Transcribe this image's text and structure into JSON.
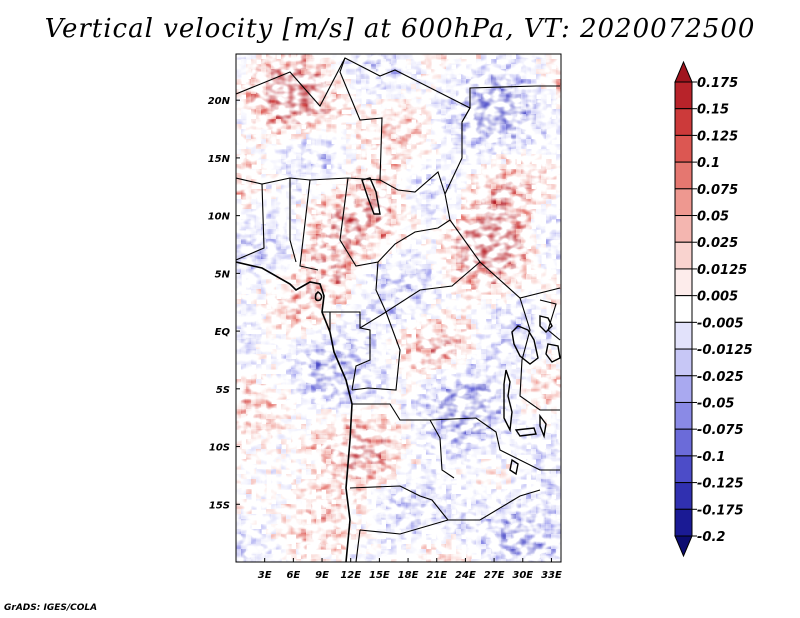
{
  "title": "Vertical velocity [m/s] at 600hPa, VT: 2020072500",
  "credit": "GrADS: IGES/COLA",
  "chart_data": {
    "type": "heatmap",
    "variable": "Vertical velocity",
    "units": "m/s",
    "level": "600hPa",
    "valid_time": "2020072500",
    "lon_range": [
      0,
      34
    ],
    "lat_range": [
      -20,
      24
    ],
    "x_ticks": [
      {
        "value": 3,
        "label": "3E"
      },
      {
        "value": 6,
        "label": "6E"
      },
      {
        "value": 9,
        "label": "9E"
      },
      {
        "value": 12,
        "label": "12E"
      },
      {
        "value": 15,
        "label": "15E"
      },
      {
        "value": 18,
        "label": "18E"
      },
      {
        "value": 21,
        "label": "21E"
      },
      {
        "value": 24,
        "label": "24E"
      },
      {
        "value": 27,
        "label": "27E"
      },
      {
        "value": 30,
        "label": "30E"
      },
      {
        "value": 33,
        "label": "33E"
      }
    ],
    "y_ticks": [
      {
        "value": 20,
        "label": "20N"
      },
      {
        "value": 15,
        "label": "15N"
      },
      {
        "value": 10,
        "label": "10N"
      },
      {
        "value": 5,
        "label": "5N"
      },
      {
        "value": 0,
        "label": "EQ"
      },
      {
        "value": -5,
        "label": "5S"
      },
      {
        "value": -10,
        "label": "10S"
      },
      {
        "value": -15,
        "label": "15S"
      }
    ],
    "colorbar": {
      "levels": [
        "0.175",
        "0.15",
        "0.125",
        "0.1",
        "0.075",
        "0.05",
        "0.025",
        "0.0125",
        "0.005",
        "-0.005",
        "-0.0125",
        "-0.025",
        "-0.05",
        "-0.075",
        "-0.1",
        "-0.125",
        "-0.175",
        "-0.2"
      ],
      "colors": [
        "#a0141e",
        "#b8232a",
        "#cc3a3a",
        "#dc5752",
        "#e57770",
        "#ee9890",
        "#f4b6b0",
        "#f9d3cf",
        "#fdeceb",
        "#ffffff",
        "#e2e2fb",
        "#c7c7f6",
        "#a9a9f0",
        "#8a8ae6",
        "#6b6bd9",
        "#4c4cc8",
        "#3030b0",
        "#1a1a94",
        "#0c0c70"
      ]
    }
  }
}
